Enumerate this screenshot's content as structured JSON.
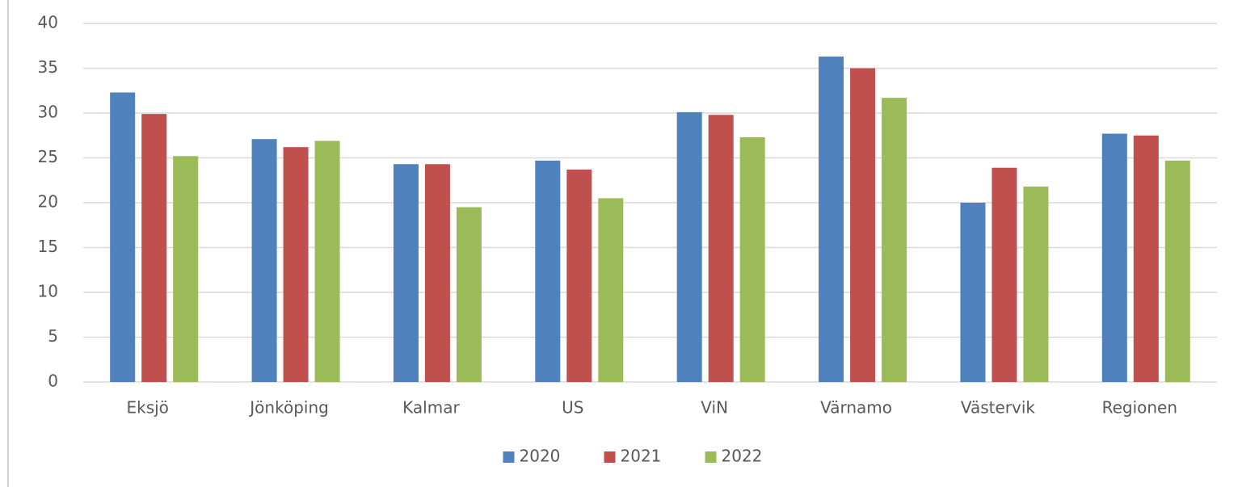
{
  "chart_data": {
    "type": "bar",
    "categories": [
      "Eksjö",
      "Jönköping",
      "Kalmar",
      "US",
      "ViN",
      "Värnamo",
      "Västervik",
      "Regionen"
    ],
    "series": [
      {
        "name": "2020",
        "color": "#4f81bd",
        "values": [
          32.3,
          27.1,
          24.3,
          24.7,
          30.1,
          36.3,
          20.0,
          27.7
        ]
      },
      {
        "name": "2021",
        "color": "#c0504d",
        "values": [
          29.9,
          26.2,
          24.3,
          23.7,
          29.8,
          35.0,
          23.9,
          27.5
        ]
      },
      {
        "name": "2022",
        "color": "#9bbb59",
        "values": [
          25.2,
          26.9,
          19.5,
          20.5,
          27.3,
          31.7,
          21.8,
          24.7
        ]
      }
    ],
    "ylim": [
      0,
      40
    ],
    "yticks": [
      0,
      5,
      10,
      15,
      20,
      25,
      30,
      35,
      40
    ],
    "grid": true,
    "legend": "bottom"
  }
}
